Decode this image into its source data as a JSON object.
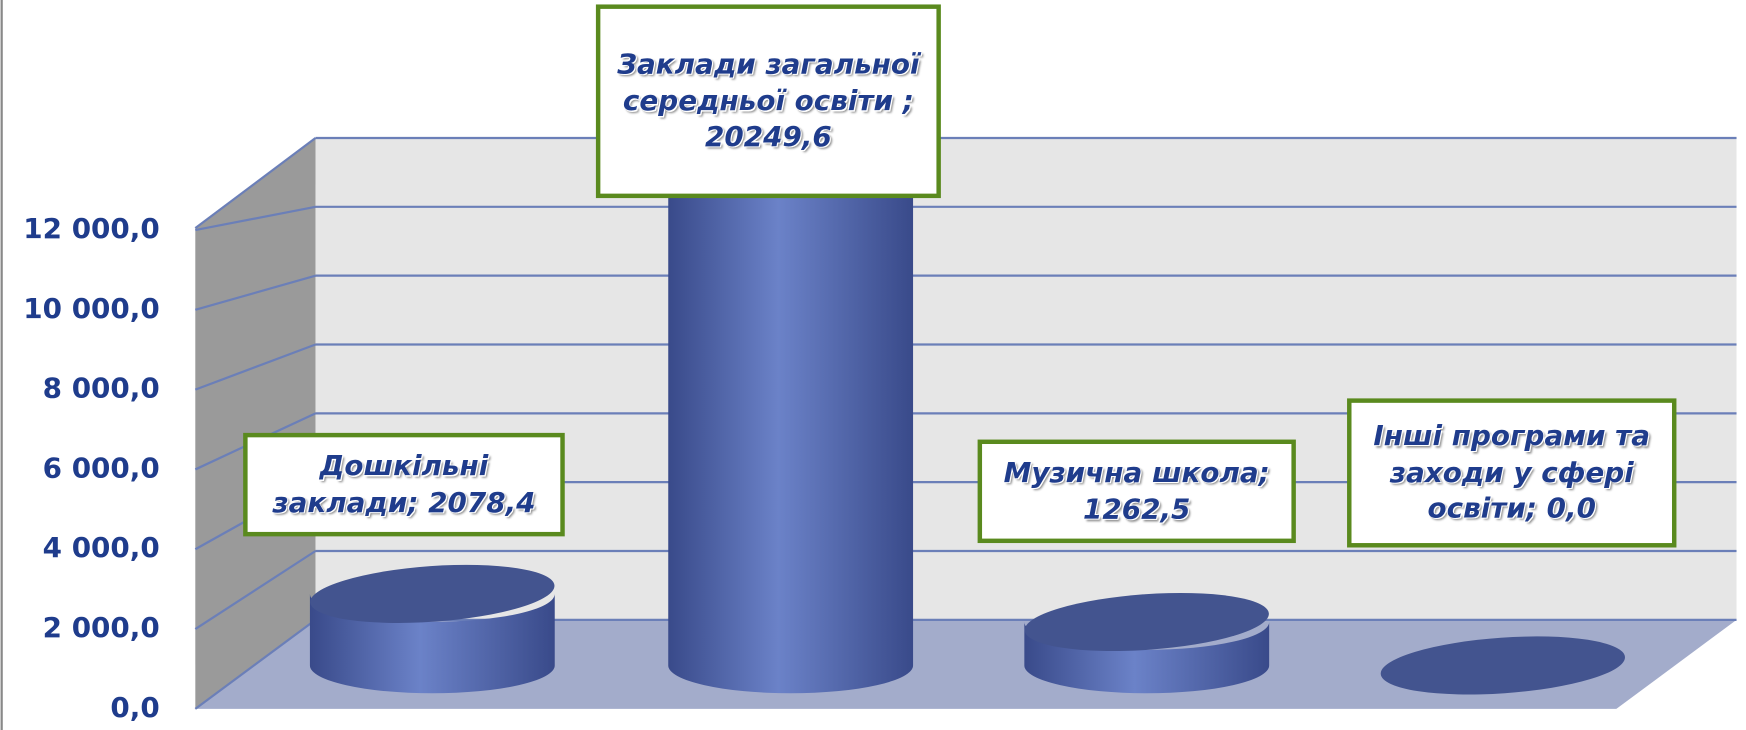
{
  "chart_data": {
    "type": "cylinder3d",
    "values": [
      2078.4,
      20249.6,
      1262.5,
      0.0
    ],
    "value_labels": [
      "Дошкільні  заклади;  2078,4",
      "Заклади загальної середньої освіти ; 20249,6",
      "Музична школа; 1262,5",
      "Інші програми та заходи у сфері освіти; 0,0"
    ],
    "color": "#5a70b8",
    "ylim": [
      0,
      14000
    ],
    "yticks": [
      {
        "value": 0,
        "label": "0,0"
      },
      {
        "value": 2000,
        "label": "2 000,0"
      },
      {
        "value": 4000,
        "label": "4 000,0"
      },
      {
        "value": 6000,
        "label": "6 000,0"
      },
      {
        "value": 8000,
        "label": "8 000,0"
      },
      {
        "value": 10000,
        "label": "10 000,0"
      },
      {
        "value": 12000,
        "label": "12 000,0"
      }
    ],
    "grid": true
  }
}
